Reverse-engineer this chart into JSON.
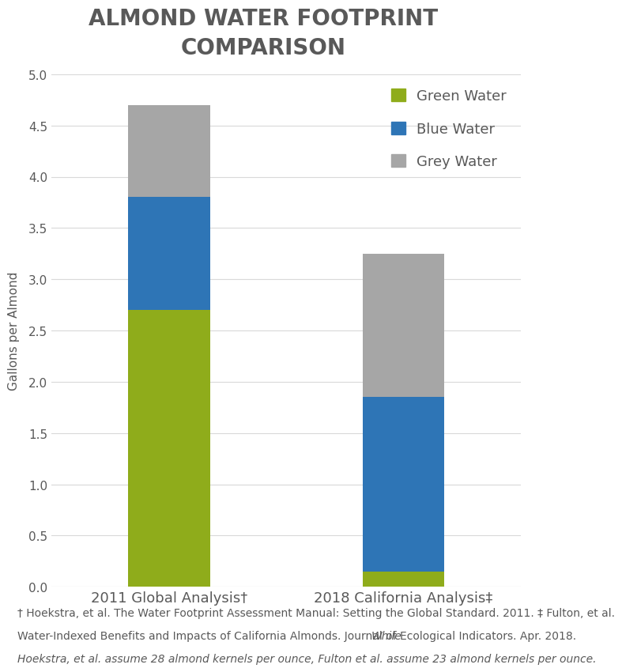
{
  "title": "ALMOND WATER FOOTPRINT\nCOMPARISON",
  "categories": [
    "2011 Global Analysis†",
    "2018 California Analysis‡"
  ],
  "green_values": [
    2.7,
    0.15
  ],
  "blue_values": [
    1.1,
    1.7
  ],
  "grey_values": [
    0.9,
    1.4
  ],
  "green_color": "#8fac1b",
  "blue_color": "#2e75b6",
  "grey_color": "#a6a6a6",
  "ylim": [
    0,
    5.0
  ],
  "yticks": [
    0.0,
    0.5,
    1.0,
    1.5,
    2.0,
    2.5,
    3.0,
    3.5,
    4.0,
    4.5,
    5.0
  ],
  "ylabel": "Gallons per Almond",
  "legend_labels": [
    "Green Water",
    "Blue Water",
    "Grey Water"
  ],
  "footnote1": "† Hoekstra, et al. The Water Footprint Assessment Manual: Setting the Global Standard. 2011. ‡ Fulton, et al.",
  "footnote2": "Water-Indexed Benefits and Impacts of California Almonds. Journal of Ecological Indicators. Apr. 2018. ",
  "footnote2_italic": "While",
  "footnote3": "Hoekstra, et al. assume 28 almond kernels per ounce, Fulton et al. assume 23 almond kernels per ounce.",
  "background_color": "#ffffff",
  "bar_width": 0.35,
  "title_fontsize": 20,
  "ylabel_fontsize": 11,
  "tick_fontsize": 11,
  "xtick_fontsize": 13,
  "legend_fontsize": 13,
  "footnote_fontsize": 10,
  "text_color": "#595959",
  "grid_color": "#d9d9d9"
}
